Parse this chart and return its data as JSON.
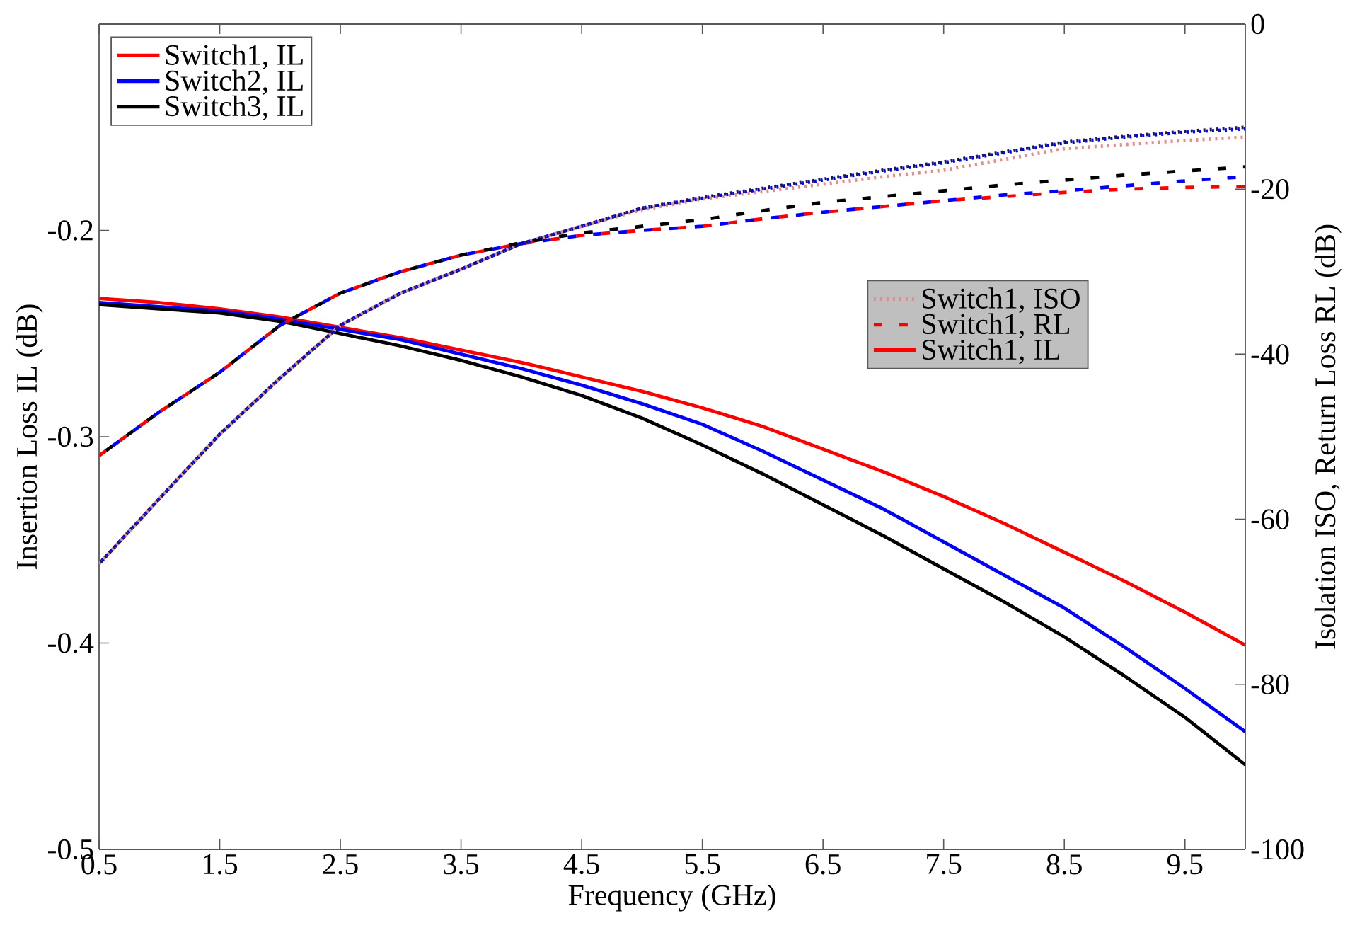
{
  "chart_data": {
    "type": "line",
    "xlabel": "Frequency (GHz)",
    "ylabel": "Insertion Loss IL (dB)",
    "y2label": "Isolation ISO, Return Loss RL (dB)",
    "x": [
      0.5,
      1,
      1.5,
      2,
      2.5,
      3,
      3.5,
      4,
      4.5,
      5,
      5.5,
      6,
      6.5,
      7,
      7.5,
      8,
      8.5,
      9,
      9.5,
      10
    ],
    "xlim": [
      0.5,
      10
    ],
    "xticks": [
      0.5,
      1.5,
      2.5,
      3.5,
      4.5,
      5.5,
      6.5,
      7.5,
      8.5,
      9.5
    ],
    "ylim": [
      -0.5,
      -0.1
    ],
    "yticks": [
      -0.5,
      -0.4,
      -0.3,
      -0.2
    ],
    "y2lim": [
      -100,
      0
    ],
    "y2ticks": [
      -100,
      -80,
      -60,
      -40,
      -20,
      0
    ],
    "legend": "top left",
    "marker": "none",
    "series": [
      {
        "name": "Switch1, IL",
        "color": "#ff0000",
        "line_style": "solid",
        "values": [
          -0.233,
          -0.235,
          -0.238,
          -0.242,
          -0.247,
          -0.252,
          -0.258,
          -0.264,
          -0.271,
          -0.278,
          -0.286,
          -0.295,
          -0.306,
          -0.317,
          -0.329,
          -0.342,
          -0.356,
          -0.37,
          -0.385,
          -0.401
        ]
      },
      {
        "name": "Switch2, IL",
        "color": "#0000ff",
        "line_style": "solid",
        "values": [
          -0.235,
          -0.237,
          -0.239,
          -0.243,
          -0.248,
          -0.253,
          -0.26,
          -0.267,
          -0.275,
          -0.284,
          -0.294,
          -0.307,
          -0.321,
          -0.335,
          -0.351,
          -0.367,
          -0.383,
          -0.402,
          -0.422,
          -0.443
        ]
      },
      {
        "name": "Switch3, IL",
        "color": "#000000",
        "line_style": "solid",
        "values": [
          -0.236,
          -0.238,
          -0.24,
          -0.244,
          -0.25,
          -0.256,
          -0.263,
          -0.271,
          -0.28,
          -0.291,
          -0.304,
          -0.318,
          -0.333,
          -0.348,
          -0.364,
          -0.38,
          -0.397,
          -0.416,
          -0.436,
          -0.459
        ]
      },
      {
        "name": "Switch1, ISO",
        "color": "#e88a8a",
        "line_style": "dotted",
        "axis": "y2",
        "values": [
          -65.4,
          -57.5,
          -49.7,
          -42.9,
          -36.5,
          -32.6,
          -29.7,
          -26.6,
          -24.5,
          -22.5,
          -21.2,
          -20.3,
          -19.4,
          -18.5,
          -17.7,
          -16.4,
          -15.1,
          -14.6,
          -14.1,
          -13.7
        ]
      },
      {
        "name": "Switch1, RL",
        "color": "#ff0000",
        "line_style": "dashed",
        "axis": "y2",
        "values": [
          -52.3,
          -47.0,
          -42.2,
          -36.5,
          -32.6,
          -30.0,
          -28.0,
          -26.6,
          -25.6,
          -25.0,
          -24.5,
          -23.6,
          -22.8,
          -22.1,
          -21.4,
          -20.9,
          -20.4,
          -20.0,
          -19.8,
          -19.7
        ]
      },
      {
        "color": "#0000ff",
        "line_style": "dotted",
        "axis": "y2",
        "values": [
          -65.4,
          -57.5,
          -49.7,
          -42.9,
          -36.5,
          -32.6,
          -29.7,
          -26.6,
          -24.5,
          -22.3,
          -21.1,
          -20.0,
          -18.9,
          -17.8,
          -16.8,
          -15.6,
          -14.4,
          -13.7,
          -13.1,
          -12.7
        ]
      },
      {
        "color": "#0000ff",
        "line_style": "dashed",
        "axis": "y2",
        "values": [
          -52.3,
          -47.0,
          -42.2,
          -36.5,
          -32.6,
          -30.0,
          -28.0,
          -26.6,
          -25.6,
          -25.0,
          -24.5,
          -23.6,
          -22.8,
          -22.1,
          -21.4,
          -20.7,
          -20.2,
          -19.6,
          -19.0,
          -18.5
        ]
      },
      {
        "color": "#1a1a4d",
        "line_style": "dotted",
        "axis": "y2",
        "values": [
          -65.4,
          -57.5,
          -49.7,
          -42.9,
          -36.5,
          -32.6,
          -29.7,
          -26.6,
          -24.5,
          -22.3,
          -21.0,
          -19.9,
          -18.8,
          -17.7,
          -16.7,
          -15.5,
          -14.3,
          -13.6,
          -13.0,
          -12.5
        ]
      },
      {
        "color": "#000000",
        "line_style": "dashed",
        "axis": "y2",
        "values": [
          -52.3,
          -47.0,
          -42.2,
          -36.5,
          -32.6,
          -30.0,
          -28.0,
          -26.5,
          -25.3,
          -24.5,
          -23.7,
          -22.6,
          -21.6,
          -20.9,
          -20.2,
          -19.5,
          -18.9,
          -18.3,
          -17.8,
          -17.3
        ]
      }
    ]
  }
}
